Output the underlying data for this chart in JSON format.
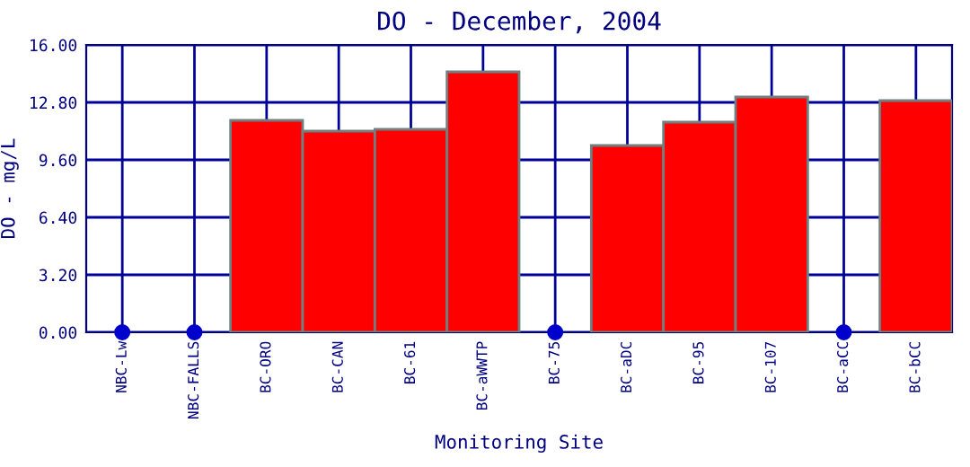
{
  "chart_data": {
    "type": "bar",
    "title": "DO - December, 2004",
    "xlabel": "Monitoring Site",
    "ylabel": "DO - mg/L",
    "categories": [
      "NBC-Lw",
      "NBC-FALLS",
      "BC-ORO",
      "BC-CAN",
      "BC-61",
      "BC-aWWTP",
      "BC-75",
      "BC-aDC",
      "BC-95",
      "BC-107",
      "BC-aCC",
      "BC-bCC"
    ],
    "series": [
      {
        "color": "#ff0000",
        "values": [
          null,
          null,
          11.8,
          11.2,
          11.3,
          14.5,
          null,
          10.4,
          11.7,
          13.1,
          null,
          12.9
        ]
      },
      {
        "type": "scatter",
        "color": "#0000cc",
        "marker": "circle",
        "values": [
          0,
          0,
          null,
          null,
          null,
          null,
          0,
          null,
          null,
          null,
          0,
          null
        ]
      }
    ],
    "ylim": [
      0,
      16
    ],
    "yticks": [
      {
        "value": 0,
        "label": "0.00"
      },
      {
        "value": 3.2,
        "label": "3.20"
      },
      {
        "value": 6.4,
        "label": "6.40"
      },
      {
        "value": 9.6,
        "label": "9.60"
      },
      {
        "value": 12.8,
        "label": "12.80"
      },
      {
        "value": 16,
        "label": "16.00"
      }
    ],
    "grid": true
  }
}
